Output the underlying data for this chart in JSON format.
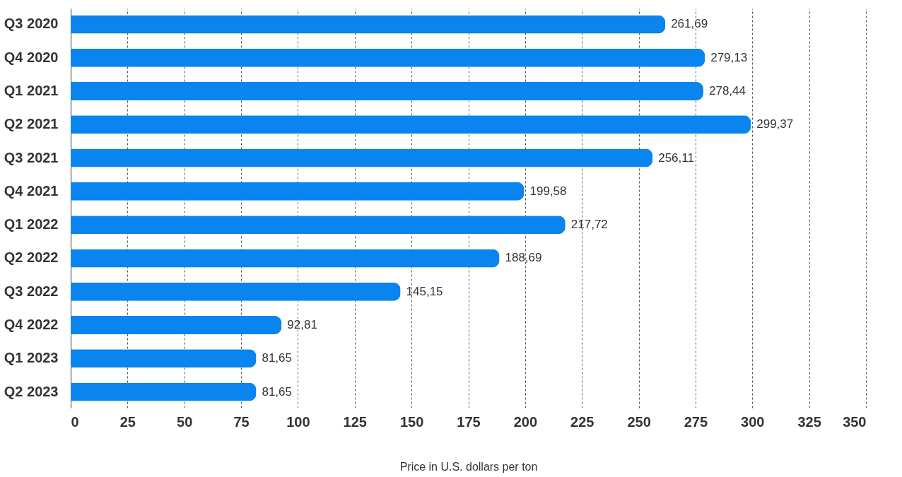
{
  "chart_data": {
    "type": "bar",
    "orientation": "horizontal",
    "xlabel": "Price in U.S. dollars per ton",
    "categories": [
      "Q3 2020",
      "Q4 2020",
      "Q1 2021",
      "Q2 2021",
      "Q3 2021",
      "Q4 2021",
      "Q1 2022",
      "Q2 2022",
      "Q3 2022",
      "Q4 2022",
      "Q1 2023",
      "Q2 2023"
    ],
    "values": [
      261.69,
      279.13,
      278.44,
      299.37,
      256.11,
      199.58,
      217.72,
      188.69,
      145.15,
      92.81,
      81.65,
      81.65
    ],
    "value_labels": [
      "261,69",
      "279,13",
      "278,44",
      "299,37",
      "256,11",
      "199,58",
      "217,72",
      "188,69",
      "145,15",
      "92,81",
      "81,65",
      "81,65"
    ],
    "color": "#0a84ee",
    "xlim": [
      0,
      350
    ],
    "xticks": [
      0,
      25,
      50,
      75,
      100,
      125,
      150,
      175,
      200,
      225,
      250,
      275,
      300,
      325,
      350
    ],
    "grid": "x",
    "legend": false
  }
}
